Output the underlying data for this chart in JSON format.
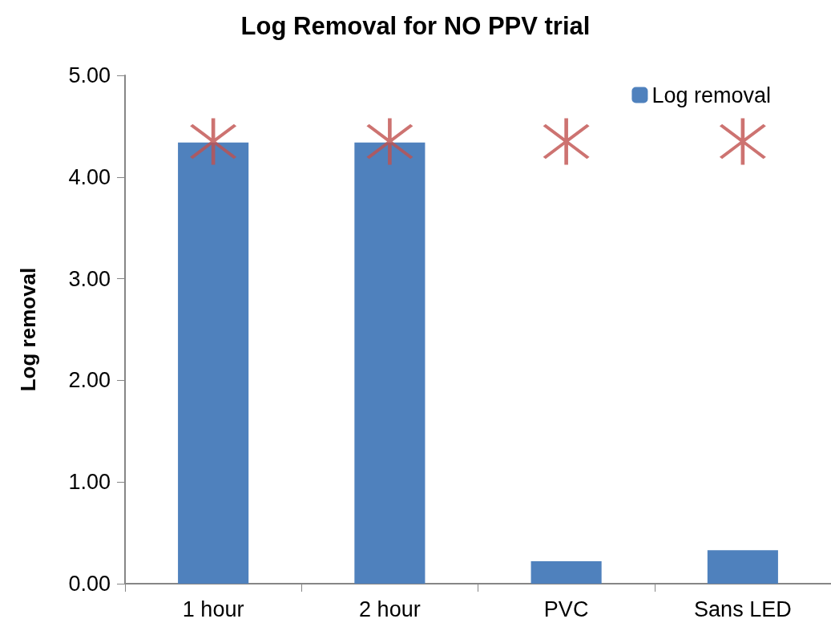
{
  "chart_data": {
    "type": "bar",
    "title": "Log Removal for NO PPV trial",
    "ylabel": "Log removal",
    "categories": [
      "1 hour",
      "2 hour",
      "PVC",
      "Sans LED"
    ],
    "series": [
      {
        "name": "Log removal",
        "color": "#4f81bd",
        "values": [
          4.34,
          4.34,
          0.22,
          0.33
        ]
      },
      {
        "type": "scatter",
        "color": "#c0504d",
        "x": [
          "1 hour",
          "2 hour",
          "PVC",
          "Sans LED"
        ],
        "values": [
          4.35,
          4.35,
          4.35,
          4.35
        ],
        "marker": "star"
      }
    ],
    "ylim": [
      0,
      5
    ],
    "yticks": [
      {
        "value": 0,
        "label": "0.00"
      },
      {
        "value": 1,
        "label": "1.00"
      },
      {
        "value": 2,
        "label": "2.00"
      },
      {
        "value": 3,
        "label": "3.00"
      },
      {
        "value": 4,
        "label": "4.00"
      },
      {
        "value": 5,
        "label": "5.00"
      }
    ],
    "grid": false,
    "legend": "top right"
  }
}
